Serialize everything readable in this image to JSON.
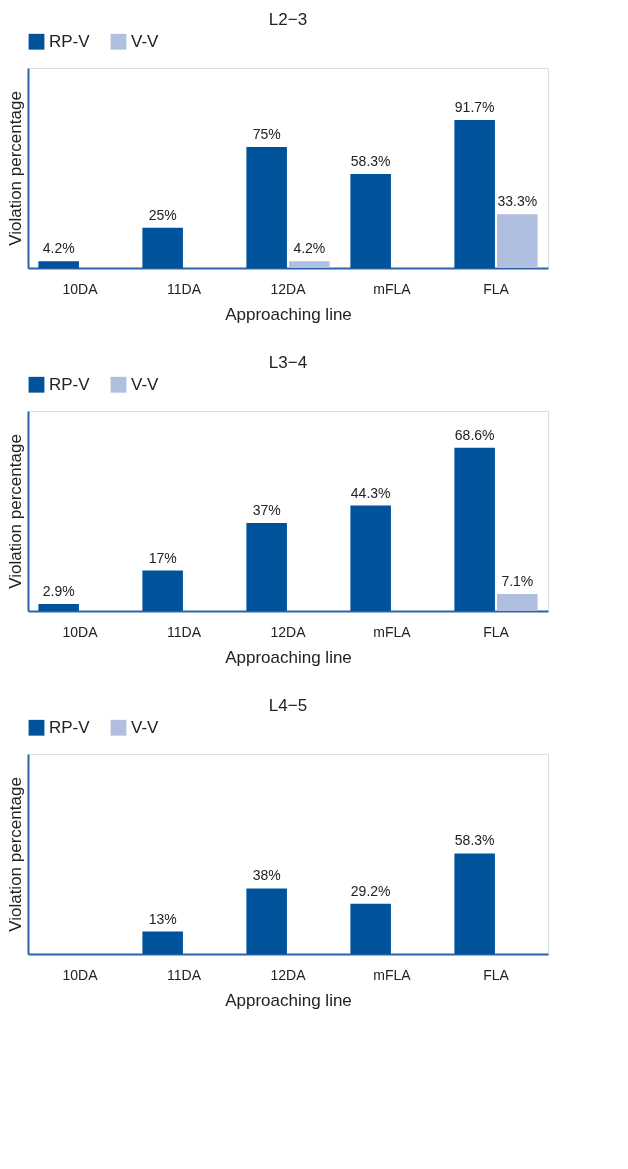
{
  "chart_data": [
    {
      "type": "bar",
      "title": "L2−3",
      "xlabel": "Approaching line",
      "ylabel": "Violation percentage",
      "categories": [
        "10DA",
        "11DA",
        "12DA",
        "mFLA",
        "FLA"
      ],
      "ylim": [
        0,
        124
      ],
      "tick_labels": "x",
      "legend": "top",
      "grid": false,
      "series": [
        {
          "name": "RP-V",
          "color": "#00539b",
          "values": [
            4.2,
            25,
            75,
            58.3,
            91.7
          ],
          "value_labels": [
            "4.2%",
            "25%",
            "75%",
            "58.3%",
            "91.7%"
          ]
        },
        {
          "name": "V-V",
          "color": "#b0bfdf",
          "values": [
            null,
            null,
            4.2,
            null,
            33.3
          ],
          "value_labels": [
            null,
            null,
            "4.2%",
            null,
            "33.3%"
          ]
        }
      ]
    },
    {
      "type": "bar",
      "title": "L3−4",
      "xlabel": "Approaching line",
      "ylabel": "Violation percentage",
      "categories": [
        "10DA",
        "11DA",
        "12DA",
        "mFLA",
        "FLA"
      ],
      "ylim": [
        0,
        84
      ],
      "tick_labels": "x",
      "legend": "top",
      "grid": false,
      "series": [
        {
          "name": "RP-V",
          "color": "#00539b",
          "values": [
            2.9,
            17,
            37,
            44.3,
            68.6
          ],
          "value_labels": [
            "2.9%",
            "17%",
            "37%",
            "44.3%",
            "68.6%"
          ]
        },
        {
          "name": "V-V",
          "color": "#b0bfdf",
          "values": [
            null,
            null,
            null,
            null,
            7.1
          ],
          "value_labels": [
            null,
            null,
            null,
            null,
            "7.1%"
          ]
        }
      ]
    },
    {
      "type": "bar",
      "title": "L4−5",
      "xlabel": "Approaching line",
      "ylabel": "Violation percentage",
      "categories": [
        "10DA",
        "11DA",
        "12DA",
        "mFLA",
        "FLA"
      ],
      "ylim": [
        0,
        116
      ],
      "tick_labels": "x",
      "legend": "top",
      "grid": false,
      "series": [
        {
          "name": "RP-V",
          "color": "#00539b",
          "values": [
            null,
            13,
            38,
            29.2,
            58.3
          ],
          "value_labels": [
            null,
            "13%",
            "38%",
            "29.2%",
            "58.3%"
          ]
        },
        {
          "name": "V-V",
          "color": "#b0bfdf",
          "values": [
            null,
            null,
            null,
            null,
            null
          ],
          "value_labels": [
            null,
            null,
            null,
            null,
            null
          ]
        }
      ]
    }
  ]
}
